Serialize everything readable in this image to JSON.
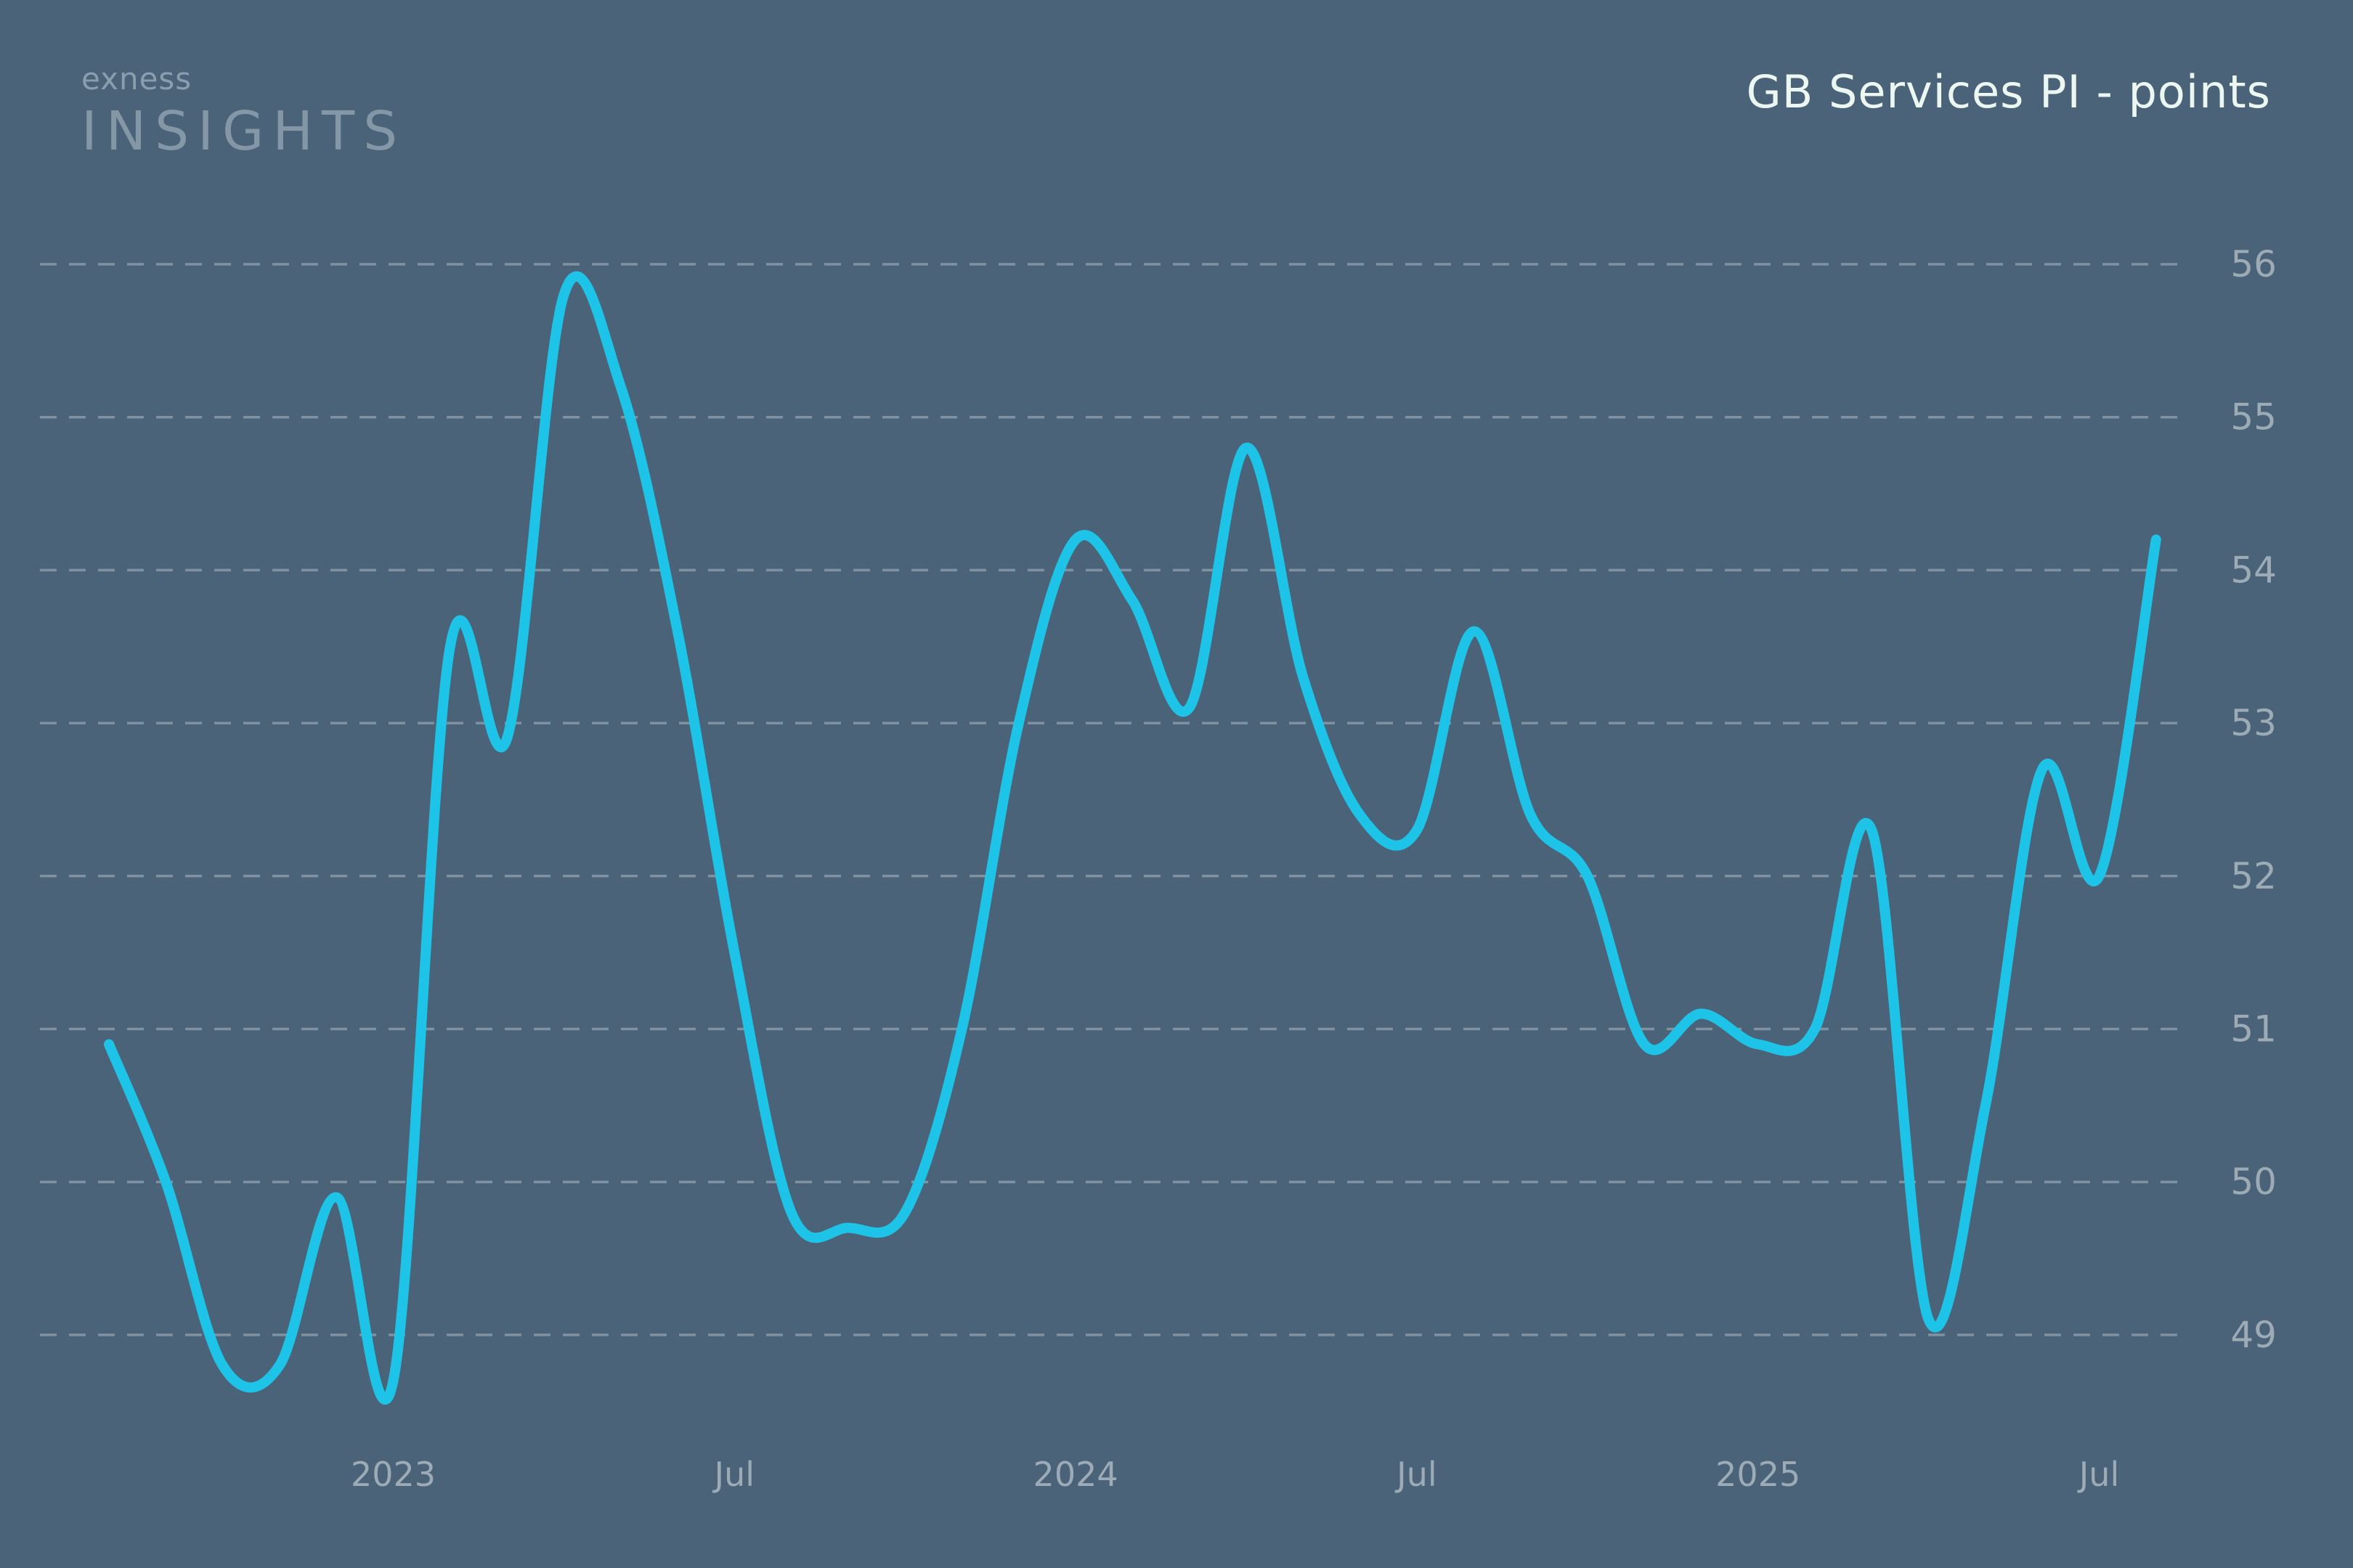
{
  "brand": {
    "name": "exness",
    "wordmark": "INSIGHTS"
  },
  "chart_title": "GB Services PI - points",
  "colors": {
    "background": "#4a6378",
    "line": "#1ec4e8",
    "grid": "#a5b2bc",
    "tick_label": "#9cabb6",
    "title": "#edf7f2",
    "brand_name": "#8b9eae",
    "brand_wordmark": "#8497a7"
  },
  "chart_data": {
    "type": "line",
    "title": "GB Services PI - points",
    "ylabel": "points",
    "legend": "none",
    "grid": "horizontal-dashed",
    "ylim": [
      48.6,
      56.4
    ],
    "yticks": [
      56,
      55,
      54,
      53,
      52,
      51,
      50,
      49
    ],
    "xticks": [
      {
        "label": "2023",
        "index": 5
      },
      {
        "label": "Jul",
        "index": 11
      },
      {
        "label": "2024",
        "index": 17
      },
      {
        "label": "Jul",
        "index": 23
      },
      {
        "label": "2025",
        "index": 29
      },
      {
        "label": "Jul",
        "index": 35
      }
    ],
    "x_monthly": [
      "2022-08",
      "2022-09",
      "2022-10",
      "2022-11",
      "2022-12",
      "2023-01",
      "2023-02",
      "2023-03",
      "2023-04",
      "2023-05",
      "2023-06",
      "2023-07",
      "2023-08",
      "2023-09",
      "2023-10",
      "2023-11",
      "2023-12",
      "2024-01",
      "2024-02",
      "2024-03",
      "2024-04",
      "2024-05",
      "2024-06",
      "2024-07",
      "2024-08",
      "2024-09",
      "2024-10",
      "2024-11",
      "2024-12",
      "2025-01",
      "2025-02",
      "2025-03",
      "2025-04",
      "2025-05",
      "2025-06",
      "2025-07",
      "2025-08"
    ],
    "values": [
      50.9,
      50.0,
      48.8,
      48.8,
      49.9,
      48.7,
      53.5,
      52.9,
      55.8,
      55.2,
      53.6,
      51.5,
      49.8,
      49.7,
      49.8,
      51.0,
      53.0,
      54.2,
      53.8,
      53.1,
      54.8,
      53.3,
      52.4,
      52.3,
      53.6,
      52.4,
      52.0,
      50.9,
      51.1,
      50.9,
      51.0,
      52.3,
      49.1,
      50.5,
      52.7,
      52.0,
      54.2
    ]
  }
}
